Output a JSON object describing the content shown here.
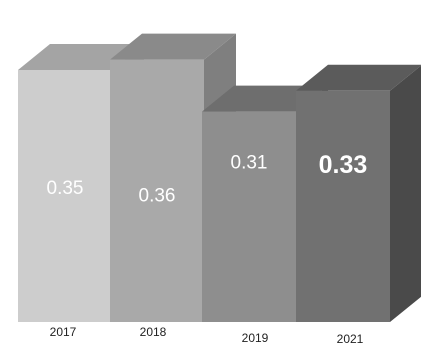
{
  "chart_data": {
    "type": "bar",
    "categories": [
      "2017",
      "2018",
      "2019",
      "2021"
    ],
    "values": [
      0.35,
      0.36,
      0.31,
      0.33
    ],
    "value_labels": [
      "0.35",
      "0.36",
      "0.31",
      "0.33"
    ],
    "emphasized_category": "2021",
    "title": "",
    "xlabel": "",
    "ylabel": "",
    "style": "3d-column",
    "grid": false,
    "legend": "none",
    "colors": {
      "front": [
        "#cdcdcd",
        "#a9a9a9",
        "#8e8e8e",
        "#717171"
      ],
      "top": [
        "#a4a4a4",
        "#8a8a8a",
        "#6e6e6e",
        "#5b5b5b"
      ],
      "side": [
        "#8f8f8f",
        "#7f7f7f",
        "#4f4f4f",
        "#4a4a4a"
      ],
      "value_text": "#ffffff",
      "axis_text": "#222222"
    }
  }
}
